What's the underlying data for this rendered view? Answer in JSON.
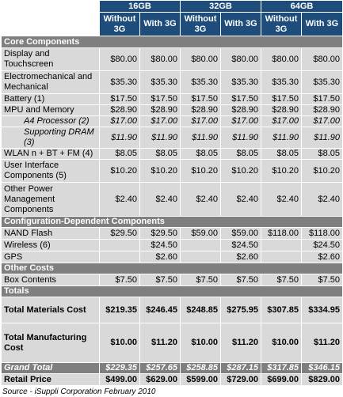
{
  "capacities": [
    "16GB",
    "32GB",
    "64GB"
  ],
  "variants": [
    "Without 3G",
    "With 3G",
    "Without 3G",
    "With 3G",
    "Without 3G",
    "With 3G"
  ],
  "sections": {
    "core": "Core Components",
    "config": "Configuration-Dependent Components",
    "other": "Other Costs",
    "totals": "Totals"
  },
  "core_rows": [
    {
      "label": "Display and Touchscreen",
      "values": [
        "$80.00",
        "$80.00",
        "$80.00",
        "$80.00",
        "$80.00",
        "$80.00"
      ]
    },
    {
      "label": "Electromechanical and Mechanical",
      "values": [
        "$35.30",
        "$35.30",
        "$35.30",
        "$35.30",
        "$35.30",
        "$35.30"
      ]
    },
    {
      "label": "Battery (1)",
      "values": [
        "$17.50",
        "$17.50",
        "$17.50",
        "$17.50",
        "$17.50",
        "$17.50"
      ]
    },
    {
      "label": "MPU and Memory",
      "values": [
        "$28.90",
        "$28.90",
        "$28.90",
        "$28.90",
        "$28.90",
        "$28.90"
      ]
    },
    {
      "label": "A4 Processor (2)",
      "values": [
        "$17.00",
        "$17.00",
        "$17.00",
        "$17.00",
        "$17.00",
        "$17.00"
      ]
    },
    {
      "label": "Supporting DRAM (3)",
      "values": [
        "$11.90",
        "$11.90",
        "$11.90",
        "$11.90",
        "$11.90",
        "$11.90"
      ]
    },
    {
      "label": "WLAN n + BT + FM (4)",
      "values": [
        "$8.05",
        "$8.05",
        "$8.05",
        "$8.05",
        "$8.05",
        "$8.05"
      ]
    },
    {
      "label": "User Interface Components (5)",
      "values": [
        "$10.20",
        "$10.20",
        "$10.20",
        "$10.20",
        "$10.20",
        "$10.20"
      ]
    },
    {
      "label": "Other Power Management Components",
      "values": [
        "$2.40",
        "$2.40",
        "$2.40",
        "$2.40",
        "$2.40",
        "$2.40"
      ]
    }
  ],
  "config_rows": [
    {
      "label": "NAND Flash",
      "values": [
        "$29.50",
        "$29.50",
        "$59.00",
        "$59.00",
        "$118.00",
        "$118.00"
      ]
    },
    {
      "label": "Wireless (6)",
      "values": [
        "",
        "$24.50",
        "",
        "$24.50",
        "",
        "$24.50"
      ]
    },
    {
      "label": "GPS",
      "values": [
        "",
        "$2.60",
        "",
        "$2.60",
        "",
        "$2.60"
      ]
    }
  ],
  "other_rows": [
    {
      "label": "Box Contents",
      "values": [
        "$7.50",
        "$7.50",
        "$7.50",
        "$7.50",
        "$7.50",
        "$7.50"
      ]
    }
  ],
  "totals_rows": [
    {
      "label": "Total Materials Cost",
      "values": [
        "$219.35",
        "$246.45",
        "$248.85",
        "$275.95",
        "$307.85",
        "$334.95"
      ]
    },
    {
      "label": "Total Manufacturing Cost",
      "values": [
        "$10.00",
        "$11.20",
        "$10.00",
        "$11.20",
        "$10.00",
        "$11.20"
      ]
    }
  ],
  "grand_total": {
    "label": "Grand Total",
    "values": [
      "$229.35",
      "$257.65",
      "$258.85",
      "$287.15",
      "$317.85",
      "$346.15"
    ]
  },
  "retail_price": {
    "label": "Retail Price",
    "values": [
      "$499.00",
      "$629.00",
      "$599.00",
      "$729.00",
      "$699.00",
      "$829.00"
    ]
  },
  "source": "Source - iSuppli Corporation February 2010"
}
